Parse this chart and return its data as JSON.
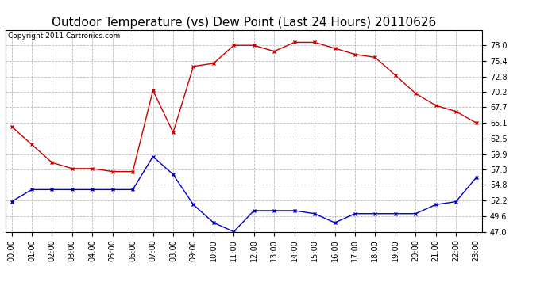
{
  "title": "Outdoor Temperature (vs) Dew Point (Last 24 Hours) 20110626",
  "copyright": "Copyright 2011 Cartronics.com",
  "x_labels": [
    "00:00",
    "01:00",
    "02:00",
    "03:00",
    "04:00",
    "05:00",
    "06:00",
    "07:00",
    "08:00",
    "09:00",
    "10:00",
    "11:00",
    "12:00",
    "13:00",
    "14:00",
    "15:00",
    "16:00",
    "17:00",
    "18:00",
    "19:00",
    "20:00",
    "21:00",
    "22:00",
    "23:00"
  ],
  "temp_data": [
    64.5,
    61.5,
    58.5,
    57.5,
    57.5,
    57.0,
    57.0,
    70.5,
    63.5,
    74.5,
    75.0,
    78.0,
    78.0,
    77.0,
    78.5,
    78.5,
    77.5,
    76.5,
    76.0,
    73.0,
    70.0,
    68.0,
    67.0,
    65.1
  ],
  "dew_data": [
    52.0,
    54.0,
    54.0,
    54.0,
    54.0,
    54.0,
    54.0,
    59.5,
    56.5,
    51.5,
    48.5,
    47.0,
    50.5,
    50.5,
    50.5,
    50.0,
    48.5,
    50.0,
    50.0,
    50.0,
    50.0,
    51.5,
    52.0,
    56.0
  ],
  "temp_color": "#cc0000",
  "dew_color": "#0000cc",
  "bg_color": "#ffffff",
  "plot_bg_color": "#ffffff",
  "grid_color": "#bbbbbb",
  "ylim_min": 47.0,
  "ylim_max": 80.6,
  "yticks": [
    47.0,
    49.6,
    52.2,
    54.8,
    57.3,
    59.9,
    62.5,
    65.1,
    67.7,
    70.2,
    72.8,
    75.4,
    78.0
  ],
  "title_fontsize": 11,
  "tick_fontsize": 7,
  "copyright_fontsize": 6.5
}
